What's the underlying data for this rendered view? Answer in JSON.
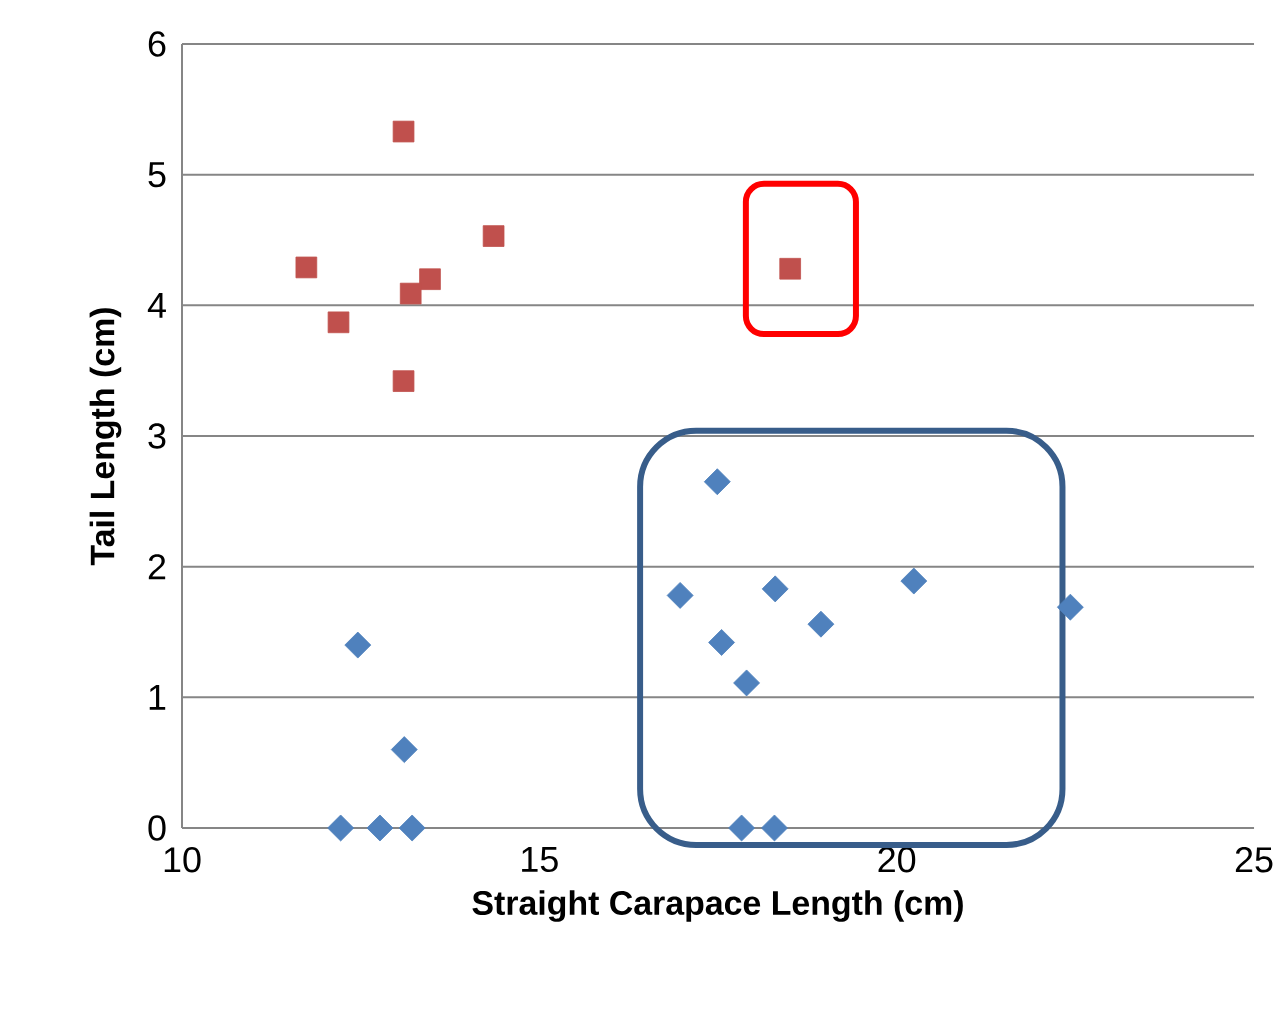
{
  "chart_data": {
    "type": "scatter",
    "xlabel": "Straight Carapace Length (cm)",
    "ylabel": "Tail  Length (cm)",
    "xlim": [
      10,
      25
    ],
    "ylim": [
      0,
      6
    ],
    "xticks": [
      10,
      15,
      20,
      25
    ],
    "yticks": [
      0,
      1,
      2,
      3,
      4,
      5,
      6
    ],
    "grid": "y",
    "series": [
      {
        "color": "#c0504d",
        "marker": "square",
        "x": [
          13.1,
          14.36,
          11.74,
          13.47,
          13.2,
          12.19,
          13.1,
          18.51
        ],
        "values": [
          5.33,
          4.53,
          4.29,
          4.2,
          4.09,
          3.87,
          3.42,
          4.28
        ]
      },
      {
        "color": "#4f81bd",
        "marker": "diamond",
        "x": [
          12.46,
          13.11,
          12.22,
          12.77,
          13.22,
          17.49,
          16.97,
          18.3,
          20.24,
          22.43,
          18.94,
          17.55,
          17.9,
          17.83,
          18.29
        ],
        "values": [
          1.4,
          0.6,
          0,
          0,
          0,
          2.65,
          1.78,
          1.83,
          1.89,
          1.69,
          1.56,
          1.42,
          1.11,
          0,
          0
        ]
      }
    ]
  }
}
